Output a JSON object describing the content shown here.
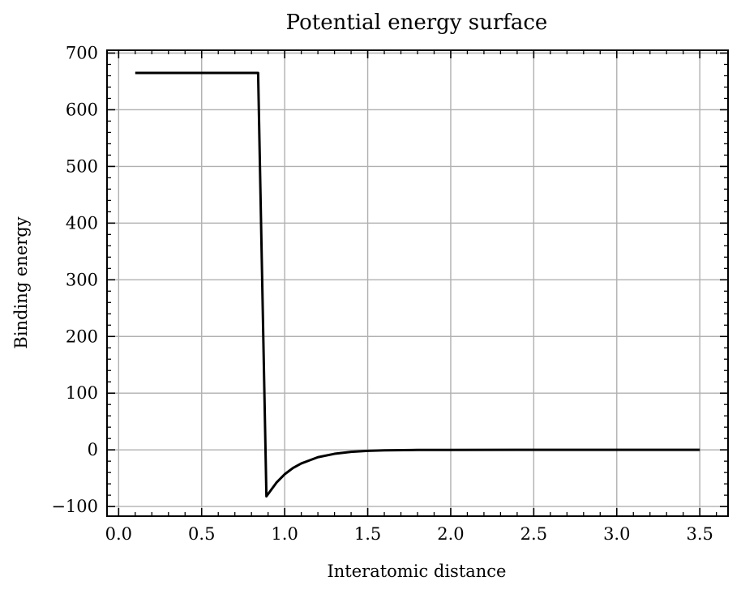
{
  "chart_data": {
    "type": "line",
    "title": "Potential energy surface",
    "xlabel": "Interatomic distance",
    "ylabel": "Binding energy",
    "xlim": [
      -0.07,
      3.67
    ],
    "ylim": [
      -117,
      705
    ],
    "x_ticks": [
      0.0,
      0.5,
      1.0,
      1.5,
      2.0,
      2.5,
      3.0,
      3.5
    ],
    "x_tick_labels": [
      "0.0",
      "0.5",
      "1.0",
      "1.5",
      "2.0",
      "2.5",
      "3.0",
      "3.5"
    ],
    "y_ticks": [
      -100,
      0,
      100,
      200,
      300,
      400,
      500,
      600,
      700
    ],
    "y_tick_labels": [
      "−100",
      "0",
      "100",
      "200",
      "300",
      "400",
      "500",
      "600",
      "700"
    ],
    "x_minor_step": 0.1,
    "y_minor_step": 20,
    "grid": true,
    "grid_color": "#b0b0b0",
    "line_color": "#000000",
    "legend": "none",
    "series": [
      {
        "values": [
          {
            "x": 0.1,
            "y": 665
          },
          {
            "x": 0.84,
            "y": 665
          },
          {
            "x": 0.89,
            "y": -82
          },
          {
            "x": 0.92,
            "y": -70
          },
          {
            "x": 0.95,
            "y": -58
          },
          {
            "x": 1.0,
            "y": -43
          },
          {
            "x": 1.05,
            "y": -32
          },
          {
            "x": 1.1,
            "y": -24
          },
          {
            "x": 1.2,
            "y": -13
          },
          {
            "x": 1.3,
            "y": -7
          },
          {
            "x": 1.4,
            "y": -3.5
          },
          {
            "x": 1.5,
            "y": -1.8
          },
          {
            "x": 1.6,
            "y": -0.9
          },
          {
            "x": 1.8,
            "y": -0.2
          },
          {
            "x": 2.0,
            "y": -0.05
          },
          {
            "x": 2.5,
            "y": 0
          },
          {
            "x": 3.0,
            "y": 0
          },
          {
            "x": 3.5,
            "y": 0
          }
        ]
      }
    ]
  }
}
